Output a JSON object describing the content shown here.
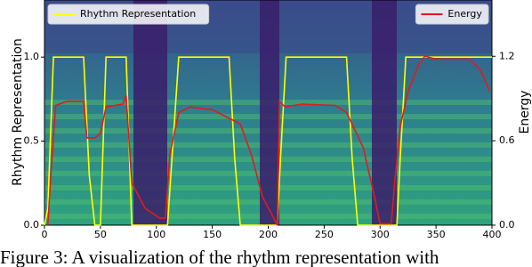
{
  "chart_data": {
    "type": "line",
    "caption": "Figure 3: A visualization of the rhythm representation with",
    "ylabel": "Rhythm Representation",
    "y2label": "Energy",
    "xlim": [
      0,
      400
    ],
    "xticks": [
      0,
      50,
      100,
      150,
      200,
      250,
      300,
      350,
      400
    ],
    "ylim": [
      0,
      1.34
    ],
    "yticks": [
      {
        "value": 0,
        "label": "0.0"
      },
      {
        "value": 0.5,
        "label": "0.5"
      },
      {
        "value": 1,
        "label": "1.0"
      }
    ],
    "y2lim": [
      0,
      1.6
    ],
    "y2ticks": [
      {
        "value": 0,
        "label": "0.0"
      },
      {
        "value": 0.6,
        "label": "0.6"
      },
      {
        "value": 1.2,
        "label": "1.2"
      }
    ],
    "series": [
      {
        "name": "Rhythm Representation",
        "color": "#ffff00",
        "legend": "upper left",
        "x": [
          0,
          3,
          8,
          35,
          40,
          45,
          50,
          55,
          73,
          78,
          110,
          114,
          120,
          165,
          170,
          175,
          208,
          211,
          216,
          270,
          275,
          280,
          315,
          318,
          323,
          400
        ],
        "values": [
          0,
          0.1,
          1,
          1,
          0.3,
          0,
          0,
          1,
          1,
          0,
          0,
          0.4,
          1,
          1,
          0.4,
          0,
          0,
          0.4,
          1,
          1,
          0.4,
          0,
          0,
          0.4,
          1,
          1
        ]
      },
      {
        "name": "Energy",
        "color": "#e31a1c",
        "axis": "y2",
        "legend": "upper right",
        "x": [
          3,
          6,
          10,
          20,
          35,
          38,
          45,
          50,
          55,
          70,
          73,
          78,
          90,
          103,
          108,
          112,
          120,
          130,
          150,
          160,
          175,
          185,
          195,
          205,
          208,
          210,
          215,
          230,
          260,
          270,
          285,
          295,
          300,
          310,
          313,
          318,
          325,
          335,
          340,
          350,
          380,
          390,
          398
        ],
        "values": [
          0,
          0.4,
          0.85,
          0.88,
          0.88,
          0.62,
          0.62,
          0.65,
          0.84,
          0.86,
          0.92,
          0.3,
          0.12,
          0.05,
          0.05,
          0.5,
          0.8,
          0.84,
          0.82,
          0.78,
          0.72,
          0.5,
          0.2,
          0.05,
          0,
          0.88,
          0.84,
          0.86,
          0.85,
          0.8,
          0.55,
          0.2,
          0.01,
          0.01,
          0.3,
          0.7,
          0.95,
          1.15,
          1.2,
          1.18,
          1.18,
          1.1,
          0.95
        ]
      }
    ]
  }
}
